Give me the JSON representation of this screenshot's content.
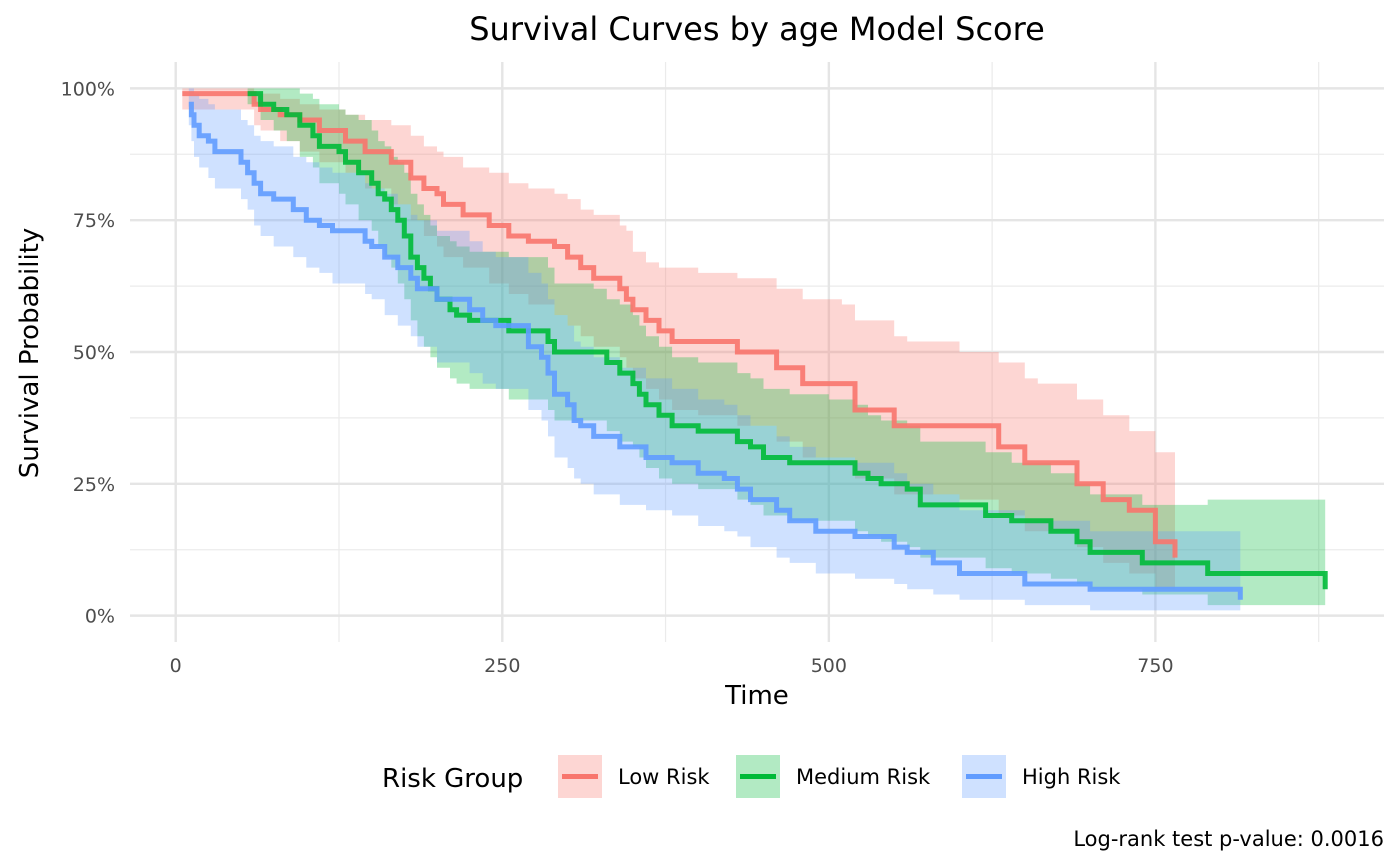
{
  "chart_data": {
    "type": "line",
    "title": "Survival Curves by age Model Score",
    "xlabel": "Time",
    "ylabel": "Survival Probability",
    "xlim": [
      -35,
      925
    ],
    "ylim": [
      -0.05,
      1.05
    ],
    "x_ticks": [
      0,
      250,
      500,
      750
    ],
    "x_minor_ticks": [
      125,
      375,
      625,
      875
    ],
    "y_ticks": [
      0,
      0.25,
      0.5,
      0.75,
      1.0
    ],
    "y_tick_labels": [
      "0%",
      "25%",
      "50%",
      "75%",
      "100%"
    ],
    "y_minor_ticks": [
      0.125,
      0.375,
      0.625,
      0.875
    ],
    "grid": true,
    "legend_title": "Risk Group",
    "legend_position": "bottom",
    "caption": "Log-rank test p-value: 0.0016",
    "series": [
      {
        "name": "Low Risk",
        "color": "#F8766D",
        "x": [
          5,
          55,
          60,
          65,
          80,
          95,
          110,
          130,
          145,
          165,
          180,
          190,
          200,
          205,
          220,
          240,
          255,
          270,
          290,
          300,
          310,
          320,
          340,
          345,
          350,
          360,
          370,
          380,
          400,
          430,
          460,
          475,
          480,
          510,
          520,
          550,
          560,
          600,
          630,
          650,
          660,
          690,
          710,
          730,
          750,
          765
        ],
        "y": [
          0.99,
          0.99,
          0.97,
          0.96,
          0.95,
          0.94,
          0.92,
          0.9,
          0.88,
          0.86,
          0.83,
          0.81,
          0.8,
          0.78,
          0.76,
          0.74,
          0.72,
          0.71,
          0.7,
          0.68,
          0.66,
          0.64,
          0.62,
          0.6,
          0.58,
          0.56,
          0.54,
          0.52,
          0.52,
          0.5,
          0.47,
          0.47,
          0.44,
          0.44,
          0.39,
          0.36,
          0.36,
          0.36,
          0.32,
          0.29,
          0.29,
          0.25,
          0.22,
          0.2,
          0.14,
          0.11
        ],
        "ci_low": [
          0.96,
          0.96,
          0.93,
          0.92,
          0.9,
          0.88,
          0.86,
          0.84,
          0.81,
          0.78,
          0.75,
          0.72,
          0.7,
          0.68,
          0.66,
          0.63,
          0.61,
          0.59,
          0.57,
          0.55,
          0.53,
          0.51,
          0.49,
          0.47,
          0.45,
          0.43,
          0.41,
          0.39,
          0.38,
          0.36,
          0.33,
          0.33,
          0.3,
          0.3,
          0.26,
          0.23,
          0.23,
          0.22,
          0.19,
          0.16,
          0.16,
          0.13,
          0.1,
          0.08,
          0.05,
          0.03
        ],
        "ci_high": [
          1.0,
          1.0,
          0.99,
          0.99,
          0.98,
          0.97,
          0.96,
          0.95,
          0.94,
          0.93,
          0.91,
          0.89,
          0.88,
          0.87,
          0.85,
          0.84,
          0.82,
          0.81,
          0.8,
          0.79,
          0.77,
          0.76,
          0.74,
          0.73,
          0.69,
          0.67,
          0.66,
          0.66,
          0.65,
          0.64,
          0.62,
          0.62,
          0.6,
          0.59,
          0.56,
          0.53,
          0.52,
          0.5,
          0.48,
          0.45,
          0.44,
          0.41,
          0.38,
          0.35,
          0.31,
          0.31
        ]
      },
      {
        "name": "Medium Risk",
        "color": "#00BA38",
        "x": [
          55,
          65,
          75,
          85,
          95,
          105,
          110,
          125,
          130,
          140,
          150,
          155,
          160,
          165,
          170,
          175,
          180,
          185,
          190,
          195,
          200,
          210,
          215,
          225,
          245,
          255,
          265,
          285,
          290,
          320,
          330,
          340,
          350,
          355,
          360,
          370,
          380,
          400,
          430,
          440,
          450,
          470,
          480,
          500,
          520,
          530,
          540,
          560,
          570,
          600,
          620,
          640,
          670,
          690,
          700,
          720,
          740,
          760,
          790,
          810,
          880
        ],
        "y": [
          0.99,
          0.97,
          0.96,
          0.95,
          0.93,
          0.91,
          0.89,
          0.88,
          0.86,
          0.84,
          0.82,
          0.8,
          0.79,
          0.77,
          0.75,
          0.72,
          0.68,
          0.66,
          0.64,
          0.62,
          0.6,
          0.58,
          0.57,
          0.56,
          0.56,
          0.54,
          0.54,
          0.52,
          0.5,
          0.5,
          0.48,
          0.46,
          0.44,
          0.42,
          0.4,
          0.38,
          0.36,
          0.35,
          0.33,
          0.32,
          0.3,
          0.29,
          0.29,
          0.29,
          0.27,
          0.26,
          0.25,
          0.24,
          0.21,
          0.21,
          0.19,
          0.18,
          0.16,
          0.14,
          0.12,
          0.12,
          0.1,
          0.1,
          0.08,
          0.08,
          0.05
        ],
        "ci_low": [
          0.97,
          0.94,
          0.92,
          0.9,
          0.87,
          0.85,
          0.82,
          0.8,
          0.78,
          0.75,
          0.73,
          0.7,
          0.68,
          0.66,
          0.63,
          0.6,
          0.56,
          0.53,
          0.51,
          0.49,
          0.47,
          0.45,
          0.44,
          0.43,
          0.43,
          0.41,
          0.41,
          0.39,
          0.37,
          0.37,
          0.35,
          0.33,
          0.32,
          0.3,
          0.28,
          0.26,
          0.25,
          0.24,
          0.22,
          0.21,
          0.19,
          0.18,
          0.18,
          0.18,
          0.16,
          0.15,
          0.14,
          0.13,
          0.11,
          0.11,
          0.09,
          0.08,
          0.07,
          0.06,
          0.05,
          0.05,
          0.04,
          0.04,
          0.02,
          0.02,
          0.01
        ],
        "ci_high": [
          1.0,
          1.0,
          1.0,
          1.0,
          0.99,
          0.98,
          0.97,
          0.96,
          0.95,
          0.94,
          0.92,
          0.9,
          0.89,
          0.87,
          0.86,
          0.84,
          0.8,
          0.78,
          0.76,
          0.74,
          0.72,
          0.71,
          0.7,
          0.69,
          0.69,
          0.68,
          0.68,
          0.66,
          0.63,
          0.62,
          0.6,
          0.59,
          0.57,
          0.55,
          0.53,
          0.51,
          0.49,
          0.48,
          0.46,
          0.45,
          0.43,
          0.42,
          0.42,
          0.41,
          0.4,
          0.38,
          0.37,
          0.36,
          0.33,
          0.33,
          0.31,
          0.29,
          0.27,
          0.25,
          0.23,
          0.23,
          0.21,
          0.21,
          0.22,
          0.22,
          0.22
        ]
      },
      {
        "name": "High Risk",
        "color": "#619CFF",
        "x": [
          10,
          12,
          14,
          18,
          25,
          30,
          50,
          55,
          60,
          65,
          75,
          90,
          100,
          110,
          120,
          145,
          150,
          160,
          170,
          180,
          185,
          200,
          225,
          235,
          245,
          270,
          280,
          285,
          290,
          300,
          305,
          310,
          320,
          340,
          360,
          380,
          400,
          420,
          430,
          440,
          460,
          470,
          490,
          520,
          550,
          560,
          580,
          600,
          650,
          700,
          750,
          815
        ],
        "y": [
          0.97,
          0.95,
          0.93,
          0.91,
          0.9,
          0.88,
          0.86,
          0.84,
          0.82,
          0.8,
          0.79,
          0.77,
          0.75,
          0.74,
          0.73,
          0.71,
          0.7,
          0.68,
          0.66,
          0.64,
          0.62,
          0.6,
          0.58,
          0.56,
          0.55,
          0.51,
          0.49,
          0.46,
          0.42,
          0.4,
          0.37,
          0.36,
          0.34,
          0.32,
          0.3,
          0.29,
          0.27,
          0.26,
          0.24,
          0.22,
          0.2,
          0.18,
          0.16,
          0.15,
          0.13,
          0.12,
          0.1,
          0.08,
          0.06,
          0.05,
          0.05,
          0.03
        ],
        "ci_low": [
          0.93,
          0.9,
          0.87,
          0.85,
          0.83,
          0.81,
          0.79,
          0.77,
          0.74,
          0.72,
          0.7,
          0.68,
          0.66,
          0.65,
          0.63,
          0.61,
          0.6,
          0.57,
          0.55,
          0.53,
          0.51,
          0.48,
          0.46,
          0.44,
          0.43,
          0.39,
          0.37,
          0.34,
          0.3,
          0.28,
          0.26,
          0.25,
          0.23,
          0.21,
          0.2,
          0.19,
          0.17,
          0.16,
          0.15,
          0.13,
          0.11,
          0.1,
          0.08,
          0.07,
          0.06,
          0.05,
          0.04,
          0.03,
          0.02,
          0.01,
          0.01,
          0.0
        ],
        "ci_high": [
          1.0,
          1.0,
          0.99,
          0.98,
          0.97,
          0.96,
          0.94,
          0.93,
          0.91,
          0.9,
          0.89,
          0.87,
          0.86,
          0.85,
          0.84,
          0.82,
          0.81,
          0.8,
          0.78,
          0.76,
          0.75,
          0.73,
          0.71,
          0.69,
          0.68,
          0.65,
          0.63,
          0.6,
          0.57,
          0.55,
          0.52,
          0.51,
          0.49,
          0.47,
          0.45,
          0.43,
          0.41,
          0.4,
          0.38,
          0.36,
          0.34,
          0.32,
          0.3,
          0.29,
          0.27,
          0.25,
          0.23,
          0.2,
          0.18,
          0.16,
          0.16,
          0.15
        ]
      }
    ]
  }
}
